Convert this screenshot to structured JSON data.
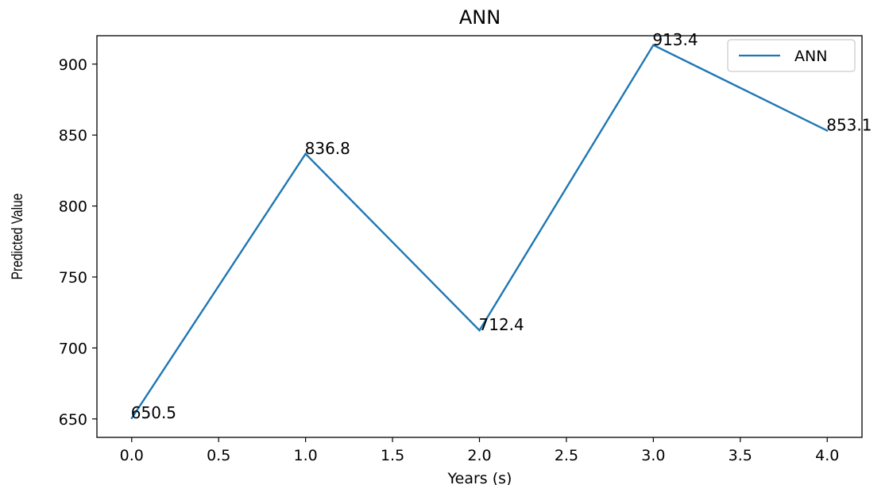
{
  "chart_data": {
    "type": "line",
    "title": "ANN",
    "xlabel": "Years (s)",
    "ylabel": "Predicted Value",
    "xlim": [
      -0.2,
      4.2
    ],
    "ylim": [
      637,
      920
    ],
    "xticks": [
      "0.0",
      "0.5",
      "1.0",
      "1.5",
      "2.0",
      "2.5",
      "3.0",
      "3.5",
      "4.0"
    ],
    "yticks": [
      "650",
      "700",
      "750",
      "800",
      "850",
      "900"
    ],
    "grid": false,
    "legend_position": "top-right",
    "series": [
      {
        "name": "ANN",
        "color": "#1f77b4",
        "x": [
          0,
          1,
          2,
          3,
          4
        ],
        "y": [
          650.5,
          836.8,
          712.4,
          913.4,
          853.1
        ],
        "labels": [
          "650.5",
          "836.8",
          "712.4",
          "913.4",
          "853.1"
        ]
      }
    ]
  }
}
